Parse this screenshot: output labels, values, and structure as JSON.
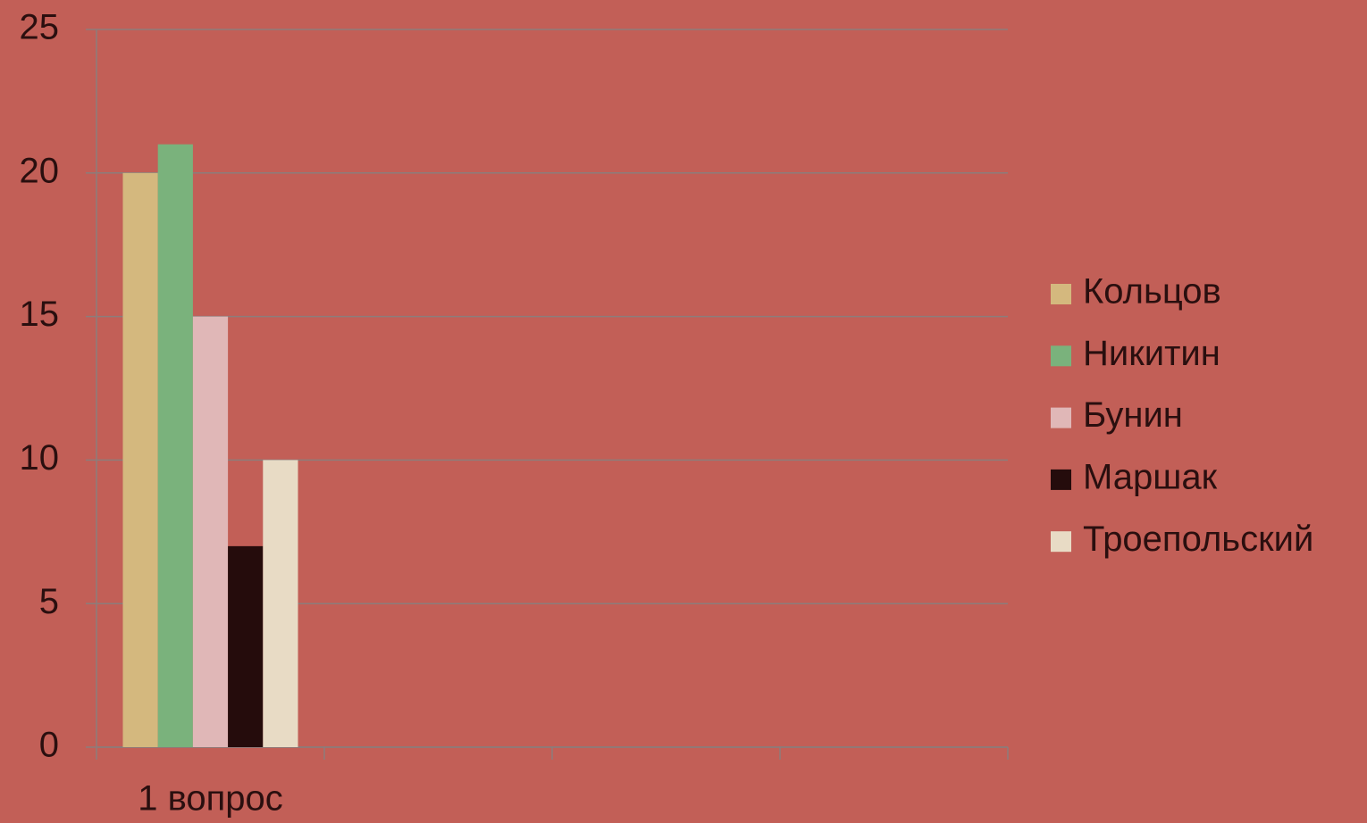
{
  "chart_data": {
    "type": "bar",
    "categories": [
      "1 вопрос",
      null,
      null,
      null
    ],
    "series": [
      {
        "name": "Кольцов",
        "color": "#d4b87e",
        "values": [
          20,
          null,
          null,
          null
        ]
      },
      {
        "name": "Никитин",
        "color": "#7ab27c",
        "values": [
          21,
          null,
          null,
          null
        ]
      },
      {
        "name": "Бунин",
        "color": "#e0b7b7",
        "values": [
          15,
          null,
          null,
          null
        ]
      },
      {
        "name": "Маршак",
        "color": "#250c0c",
        "values": [
          7,
          null,
          null,
          null
        ]
      },
      {
        "name": "Троепольский",
        "color": "#e8dbc5",
        "values": [
          10,
          null,
          null,
          null
        ]
      }
    ],
    "ylim": [
      0,
      25
    ],
    "yticks": [
      0,
      5,
      10,
      15,
      20,
      25
    ],
    "grid": true,
    "legend": "right"
  }
}
